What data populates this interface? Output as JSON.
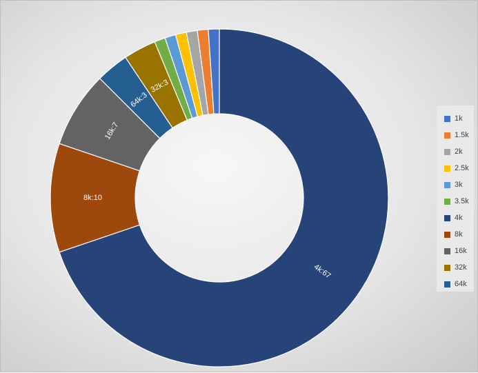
{
  "chart_data": {
    "type": "pie",
    "variant": "donut",
    "title": "",
    "categories": [
      "1k",
      "1.5k",
      "2k",
      "2.5k",
      "3k",
      "3.5k",
      "4k",
      "8k",
      "16k",
      "32k",
      "64k"
    ],
    "values": [
      1,
      1,
      1,
      1,
      1,
      1,
      67,
      10,
      7,
      3,
      3
    ],
    "colors": [
      "#4472c4",
      "#ed7d31",
      "#a5a5a5",
      "#ffc000",
      "#5b9bd5",
      "#70ad47",
      "#264478",
      "#9e480e",
      "#636363",
      "#997300",
      "#255e91"
    ],
    "data_labels": [
      "",
      "",
      "",
      "",
      "",
      "",
      "4k:67",
      "8k:10",
      "16k:7",
      "32k:3",
      "64k:3"
    ],
    "order": [
      "4k",
      "8k",
      "16k",
      "64k",
      "32k",
      "3.5k",
      "3k",
      "2.5k",
      "2k",
      "1.5k",
      "1k"
    ],
    "legend": "right",
    "label_color": "#ffffff"
  }
}
